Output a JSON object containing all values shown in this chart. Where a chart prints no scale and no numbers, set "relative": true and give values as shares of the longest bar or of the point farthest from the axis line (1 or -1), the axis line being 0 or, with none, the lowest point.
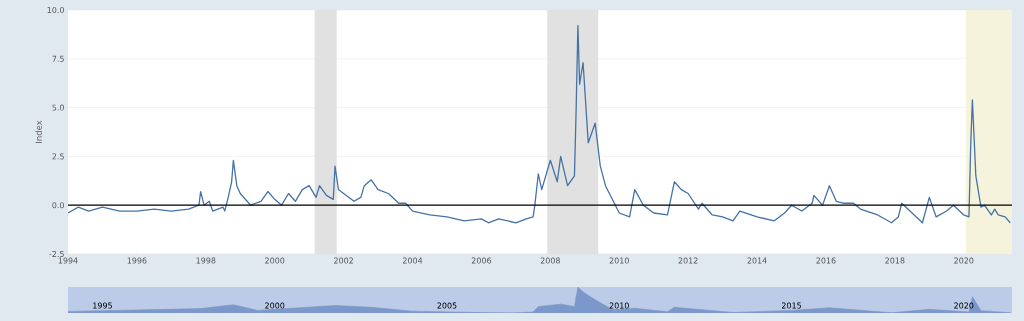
{
  "chart_data": [
    {
      "type": "line",
      "ylabel": "Index",
      "x": [
        1994,
        1994.3,
        1994.6,
        1995,
        1995.5,
        1996,
        1996.5,
        1997,
        1997.5,
        1997.8,
        1997.85,
        1997.95,
        1998.1,
        1998.2,
        1998.5,
        1998.55,
        1998.65,
        1998.75,
        1998.8,
        1998.9,
        1999.0,
        1999.3,
        1999.6,
        1999.8,
        2000.0,
        2000.2,
        2000.4,
        2000.6,
        2000.8,
        2001.0,
        2001.2,
        2001.3,
        2001.5,
        2001.7,
        2001.75,
        2001.85,
        2002.0,
        2002.3,
        2002.5,
        2002.6,
        2002.8,
        2003.0,
        2003.3,
        2003.6,
        2003.8,
        2004.0,
        2004.5,
        2005.0,
        2005.5,
        2006.0,
        2006.2,
        2006.5,
        2007.0,
        2007.3,
        2007.5,
        2007.55,
        2007.65,
        2007.75,
        2008.0,
        2008.2,
        2008.3,
        2008.5,
        2008.7,
        2008.75,
        2008.8,
        2008.85,
        2008.95,
        2009.1,
        2009.3,
        2009.45,
        2009.6,
        2009.8,
        2010.0,
        2010.3,
        2010.45,
        2010.7,
        2011.0,
        2011.4,
        2011.6,
        2011.8,
        2012.0,
        2012.3,
        2012.4,
        2012.7,
        2013.0,
        2013.3,
        2013.5,
        2014.0,
        2014.5,
        2014.8,
        2015.0,
        2015.3,
        2015.6,
        2015.65,
        2015.9,
        2016.1,
        2016.3,
        2016.5,
        2016.8,
        2017.0,
        2017.5,
        2017.9,
        2018.1,
        2018.2,
        2018.5,
        2018.8,
        2019.0,
        2019.2,
        2019.5,
        2019.7,
        2020.0,
        2020.15,
        2020.2,
        2020.25,
        2020.35,
        2020.5,
        2020.6,
        2020.8,
        2020.9,
        2021.0,
        2021.2,
        2021.35
      ],
      "series": [
        {
          "color": "#4572a7",
          "values": [
            -0.4,
            -0.1,
            -0.3,
            -0.1,
            -0.3,
            -0.3,
            -0.2,
            -0.3,
            -0.2,
            0.0,
            0.7,
            0.0,
            0.2,
            -0.3,
            -0.1,
            -0.3,
            0.4,
            1.2,
            2.3,
            1.0,
            0.6,
            0.0,
            0.2,
            0.7,
            0.3,
            0.0,
            0.6,
            0.2,
            0.8,
            1.0,
            0.4,
            1.0,
            0.5,
            0.3,
            2.0,
            0.8,
            0.6,
            0.2,
            0.4,
            1.0,
            1.3,
            0.8,
            0.6,
            0.1,
            0.1,
            -0.3,
            -0.5,
            -0.6,
            -0.8,
            -0.7,
            -0.9,
            -0.7,
            -0.9,
            -0.7,
            -0.6,
            0.0,
            1.6,
            0.8,
            2.3,
            1.2,
            2.5,
            1.0,
            1.5,
            5.0,
            9.2,
            6.2,
            7.3,
            3.2,
            4.2,
            2.0,
            1.0,
            0.3,
            -0.4,
            -0.6,
            0.8,
            0.0,
            -0.4,
            -0.5,
            1.2,
            0.8,
            0.6,
            -0.2,
            0.1,
            -0.5,
            -0.6,
            -0.8,
            -0.3,
            -0.6,
            -0.8,
            -0.4,
            0.0,
            -0.3,
            0.1,
            0.5,
            0.0,
            1.0,
            0.2,
            0.1,
            0.1,
            -0.2,
            -0.5,
            -0.9,
            -0.6,
            0.1,
            -0.4,
            -0.9,
            0.4,
            -0.6,
            -0.3,
            0.0,
            -0.5,
            -0.6,
            3.0,
            5.4,
            1.5,
            -0.1,
            0.0,
            -0.5,
            -0.2,
            -0.5,
            -0.6,
            -0.9
          ]
        }
      ],
      "xlim": [
        1994,
        2021.4
      ],
      "xticks": [
        1994,
        1996,
        1998,
        2000,
        2002,
        2004,
        2006,
        2008,
        2010,
        2012,
        2014,
        2016,
        2018,
        2020
      ],
      "ylim": [
        -2.5,
        10
      ],
      "yticks": [
        {
          "value": -2.5,
          "label": "-2.5"
        },
        {
          "value": 0,
          "label": "0.0"
        },
        {
          "value": 2.5,
          "label": "2.5"
        },
        {
          "value": 5,
          "label": "5.0"
        },
        {
          "value": 7.5,
          "label": "7.5"
        },
        {
          "value": 10,
          "label": "10.0"
        }
      ],
      "grid": "y",
      "ref_lines": [
        {
          "axis": "y",
          "value": 0,
          "color": "#000000"
        }
      ],
      "bands": [
        {
          "axis": "x",
          "from": 2001.16,
          "to": 2001.8,
          "color": "#e1e1e1"
        },
        {
          "axis": "x",
          "from": 2007.91,
          "to": 2009.39,
          "color": "#e1e1e1"
        },
        {
          "axis": "x",
          "from": 2020.06,
          "to": 2021.4,
          "color": "#f5f3dc"
        }
      ]
    },
    {
      "type": "area",
      "relative": true,
      "tick_labels": "x",
      "x": [
        1994,
        1997.85,
        1998.8,
        1999.5,
        2001.75,
        2002.8,
        2004,
        2006.2,
        2007.0,
        2007.5,
        2007.65,
        2008.3,
        2008.7,
        2008.8,
        2008.95,
        2009.3,
        2009.8,
        2010.45,
        2011.4,
        2011.6,
        2013.3,
        2015.0,
        2016.1,
        2017.9,
        2019.0,
        2020.15,
        2020.25,
        2020.5,
        2021.35
      ],
      "series": [
        {
          "color": "#7c97c9",
          "values": [
            0.06,
            0.17,
            0.32,
            0.1,
            0.29,
            0.22,
            0.07,
            0.01,
            0.0,
            0.04,
            0.25,
            0.34,
            0.25,
            1.0,
            0.81,
            0.51,
            0.13,
            0.18,
            0.05,
            0.22,
            0.02,
            0.1,
            0.2,
            0.01,
            0.14,
            0.04,
            0.63,
            0.09,
            0.01
          ]
        }
      ],
      "xlim": [
        1994,
        2021.4
      ],
      "xticks": [
        1995,
        2000,
        2005,
        2010,
        2015,
        2020
      ]
    }
  ]
}
